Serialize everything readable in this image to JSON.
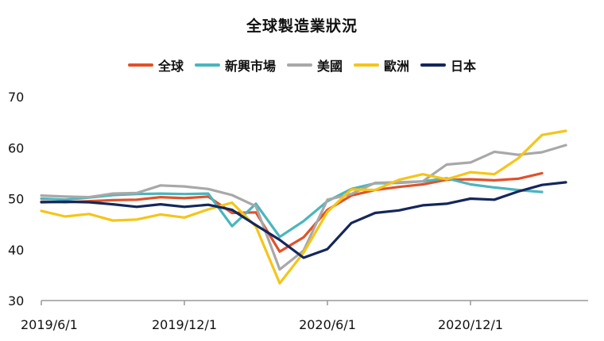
{
  "chart_data": {
    "type": "line",
    "title": "全球製造業狀況",
    "x": [
      "2019/6/1",
      "2019/7/1",
      "2019/8/1",
      "2019/9/1",
      "2019/10/1",
      "2019/11/1",
      "2019/12/1",
      "2020/1/1",
      "2020/2/1",
      "2020/3/1",
      "2020/4/1",
      "2020/5/1",
      "2020/6/1",
      "2020/7/1",
      "2020/8/1",
      "2020/9/1",
      "2020/10/1",
      "2020/11/1",
      "2020/12/1",
      "2021/1/1",
      "2021/2/1",
      "2021/3/1",
      "2021/4/1",
      "2021/5/1",
      "2021/6/1"
    ],
    "xticks": [
      "2019/6/1",
      "2019/12/1",
      "2020/6/1",
      "2020/12/1"
    ],
    "yticks": [
      30,
      40,
      50,
      60,
      70
    ],
    "ylim": [
      30,
      70
    ],
    "xlabel": "",
    "ylabel": "",
    "legend_position": "top-center",
    "series": [
      {
        "name": "全球",
        "color": "#E0522A",
        "values": [
          49.4,
          49.3,
          49.5,
          49.7,
          49.8,
          50.3,
          50.1,
          50.4,
          47.2,
          47.3,
          39.6,
          42.4,
          47.8,
          50.6,
          51.7,
          52.3,
          52.8,
          53.7,
          53.8,
          53.6,
          53.9,
          55.0,
          null,
          null,
          null
        ]
      },
      {
        "name": "新興市場",
        "color": "#4BB5BE",
        "values": [
          50.0,
          49.8,
          50.2,
          50.7,
          50.9,
          51.0,
          50.9,
          51.0,
          44.6,
          49.0,
          42.5,
          45.6,
          49.5,
          51.9,
          53.0,
          53.1,
          53.4,
          54.0,
          52.8,
          52.2,
          51.7,
          51.3,
          null,
          null,
          null
        ]
      },
      {
        "name": "美國",
        "color": "#A8A8A8",
        "values": [
          50.6,
          50.4,
          50.3,
          51.0,
          51.1,
          52.6,
          52.4,
          51.9,
          50.7,
          48.5,
          36.1,
          39.8,
          49.8,
          50.9,
          53.1,
          53.2,
          53.4,
          56.7,
          57.1,
          59.2,
          58.6,
          59.1,
          60.5,
          null,
          null
        ]
      },
      {
        "name": "歐洲",
        "color": "#F5C518",
        "values": [
          47.6,
          46.5,
          47.0,
          45.7,
          45.9,
          46.9,
          46.3,
          47.9,
          49.2,
          44.5,
          33.4,
          39.4,
          47.4,
          51.8,
          51.7,
          53.7,
          54.8,
          53.8,
          55.2,
          54.8,
          57.9,
          62.5,
          63.3,
          null,
          null
        ]
      },
      {
        "name": "日本",
        "color": "#14275C",
        "values": [
          49.3,
          49.4,
          49.3,
          48.9,
          48.4,
          48.9,
          48.4,
          48.8,
          47.8,
          44.8,
          41.9,
          38.4,
          40.1,
          45.2,
          47.2,
          47.7,
          48.7,
          49.0,
          50.0,
          49.8,
          51.4,
          52.7,
          53.2,
          null,
          null
        ]
      }
    ]
  }
}
